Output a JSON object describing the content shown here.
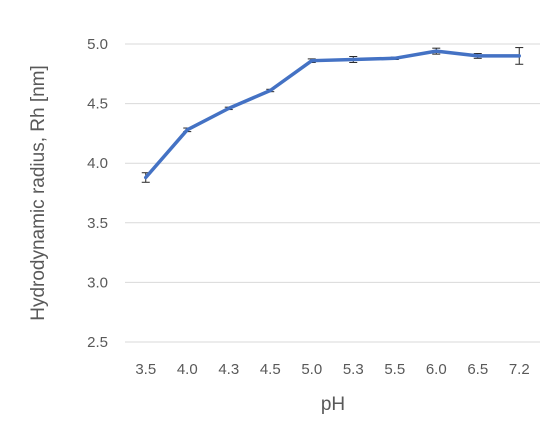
{
  "chart_data": {
    "type": "line",
    "title": "",
    "xlabel": "pH",
    "ylabel": "Hydrodynamic radius, Rh [nm]",
    "categories": [
      "3.5",
      "4.0",
      "4.3",
      "4.5",
      "5.0",
      "5.3",
      "5.5",
      "6.0",
      "6.5",
      "7.2"
    ],
    "ylim": [
      2.5,
      5.0
    ],
    "yticks": [
      "2.5",
      "3.0",
      "3.5",
      "4.0",
      "4.5",
      "5.0"
    ],
    "grid": true,
    "legend": "none",
    "series": [
      {
        "values": [
          3.88,
          4.28,
          4.46,
          4.61,
          4.86,
          4.87,
          4.88,
          4.94,
          4.9,
          4.9
        ],
        "error": [
          0.04,
          0.015,
          0.01,
          0.01,
          0.015,
          0.025,
          0.01,
          0.025,
          0.02,
          0.07
        ],
        "color": "#4472c4"
      }
    ]
  }
}
